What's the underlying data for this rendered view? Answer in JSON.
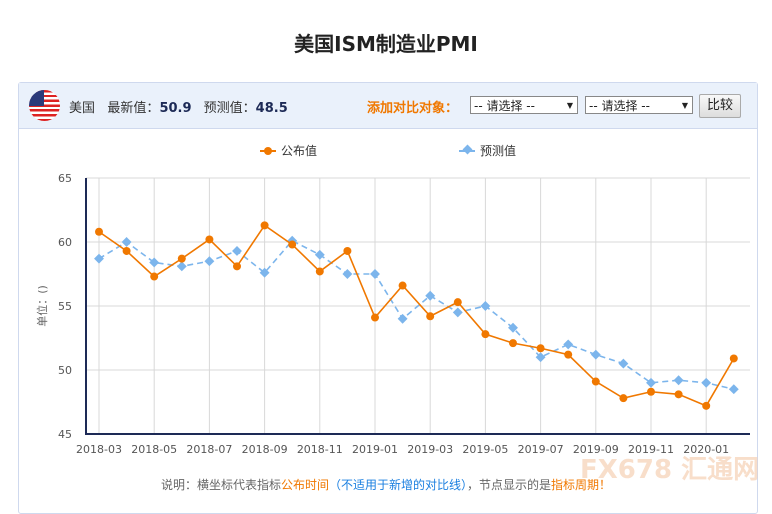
{
  "title": "美国ISM制造业PMI",
  "header": {
    "country": "美国",
    "flag_icon": "us-flag-icon",
    "latest_label": "最新值：",
    "latest_value": "50.9",
    "forecast_label": "预测值：",
    "forecast_value": "48.5",
    "compare_label": "添加对比对象：",
    "select1": "-- 请选择 --",
    "select2": "-- 请选择 --",
    "compare_button": "比较"
  },
  "note": {
    "prefix": "说明：横坐标代表指标",
    "orange1": "公布时间",
    "blue": "（不适用于新增的对比线）",
    "middle": "，节点显示的是",
    "orange2": "指标周期！"
  },
  "watermark": "FX678 汇通网",
  "colors": {
    "published": "#f07800",
    "forecast": "#7cb5ec",
    "axis": "#1d2a56"
  },
  "chart_data": {
    "type": "line",
    "ylabel": "单位：()",
    "ylim": [
      45,
      65
    ],
    "yticks": [
      45,
      50,
      55,
      60,
      65
    ],
    "grid": true,
    "legend_position": "top",
    "x": [
      "2018-03",
      "2018-04",
      "2018-05",
      "2018-06",
      "2018-07",
      "2018-08",
      "2018-09",
      "2018-10",
      "2018-11",
      "2018-12",
      "2019-01",
      "2019-02",
      "2019-03",
      "2019-04",
      "2019-05",
      "2019-06",
      "2019-07",
      "2019-08",
      "2019-09",
      "2019-10",
      "2019-11",
      "2019-12",
      "2020-01",
      "2020-02"
    ],
    "xtick_labels": [
      "2018-03",
      "2018-05",
      "2018-07",
      "2018-09",
      "2018-11",
      "2019-01",
      "2019-03",
      "2019-05",
      "2019-07",
      "2019-09",
      "2019-11",
      "2020-01"
    ],
    "series": [
      {
        "name": "公布值",
        "values": [
          60.8,
          59.3,
          57.3,
          58.7,
          60.2,
          58.1,
          61.3,
          59.8,
          57.7,
          59.3,
          54.1,
          56.6,
          54.2,
          55.3,
          52.8,
          52.1,
          51.7,
          51.2,
          49.1,
          47.8,
          48.3,
          48.1,
          47.2,
          50.9
        ]
      },
      {
        "name": "预测值",
        "values": [
          58.7,
          60.0,
          58.4,
          58.1,
          58.5,
          59.3,
          57.6,
          60.1,
          59.0,
          57.5,
          57.5,
          54.0,
          55.8,
          54.5,
          55.0,
          53.3,
          51.0,
          52.0,
          51.2,
          50.5,
          49.0,
          49.2,
          49.0,
          48.5
        ]
      }
    ]
  }
}
